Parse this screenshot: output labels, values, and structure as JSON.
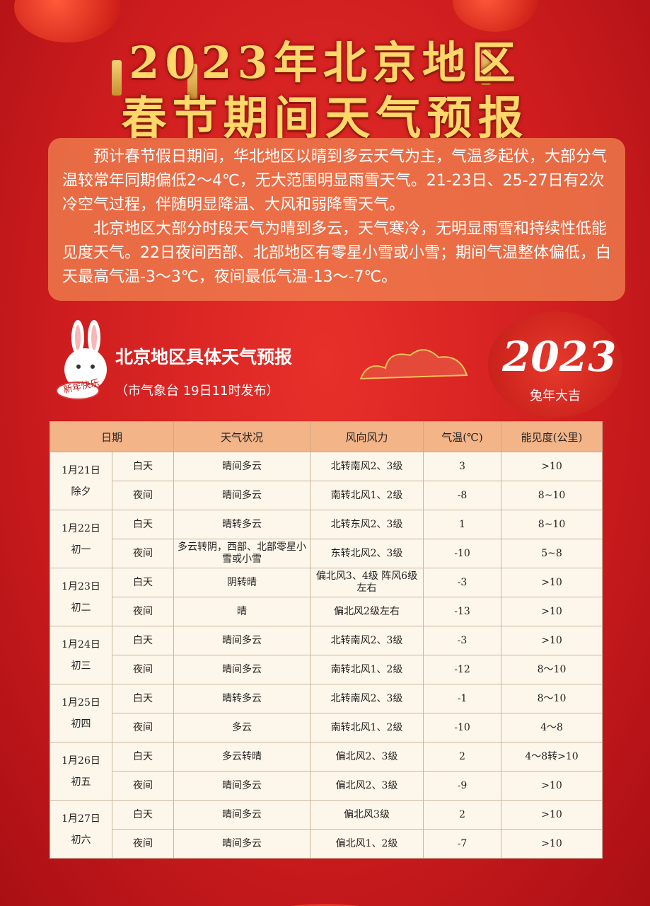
{
  "title": {
    "line1": "2023年北京地区",
    "line2": "春节期间天气预报"
  },
  "intro": {
    "para1": "预计春节假日期间，华北地区以晴到多云天气为主，气温多起伏，大部分气温较常年同期偏低2～4℃，无大范围明显雨雪天气。21-23日、25-27日有2次冷空气过程，伴随明显降温、大风和弱降雪天气。",
    "para2": "北京地区大部分时段天气为晴到多云，天气寒冷，无明显雨雪和持续性低能见度天气。22日夜间西部、北部地区有零星小雪或小雪；期间气温整体偏低，白天最高气温-3～3℃，夜间最低气温-13～-7℃。"
  },
  "section": {
    "title": "北京地区具体天气预报",
    "subtitle": "（市气象台 19日11时发布）"
  },
  "logo": {
    "year": "2023",
    "caption": "兔年大吉",
    "badge": "新年快乐"
  },
  "table": {
    "headers": [
      "日期",
      "天气状况",
      "风向风力",
      "气温(℃)",
      "能见度(公里)"
    ],
    "days": [
      {
        "date": "1月21日",
        "lunar": "除夕",
        "rows": [
          {
            "period": "白天",
            "weather": "晴间多云",
            "wind": "北转南风2、3级",
            "temp": "3",
            "vis": ">10"
          },
          {
            "period": "夜间",
            "weather": "晴间多云",
            "wind": "南转北风1、2级",
            "temp": "-8",
            "vis": "8~10"
          }
        ]
      },
      {
        "date": "1月22日",
        "lunar": "初一",
        "rows": [
          {
            "period": "白天",
            "weather": "晴转多云",
            "wind": "北转东风2、3级",
            "temp": "1",
            "vis": "8~10"
          },
          {
            "period": "夜间",
            "weather": "多云转阴，西部、北部零星小雪或小雪",
            "wind": "东转北风2、3级",
            "temp": "-10",
            "vis": "5~8"
          }
        ]
      },
      {
        "date": "1月23日",
        "lunar": "初二",
        "rows": [
          {
            "period": "白天",
            "weather": "阴转晴",
            "wind": "偏北风3、4级 阵风6级左右",
            "temp": "-3",
            "vis": ">10"
          },
          {
            "period": "夜间",
            "weather": "晴",
            "wind": "偏北风2级左右",
            "temp": "-13",
            "vis": ">10"
          }
        ]
      },
      {
        "date": "1月24日",
        "lunar": "初三",
        "rows": [
          {
            "period": "白天",
            "weather": "晴间多云",
            "wind": "北转南风2、3级",
            "temp": "-3",
            "vis": ">10"
          },
          {
            "period": "夜间",
            "weather": "晴间多云",
            "wind": "南转北风1、2级",
            "temp": "-12",
            "vis": "8～10"
          }
        ]
      },
      {
        "date": "1月25日",
        "lunar": "初四",
        "rows": [
          {
            "period": "白天",
            "weather": "晴转多云",
            "wind": "北转南风2、3级",
            "temp": "-1",
            "vis": "8～10"
          },
          {
            "period": "夜间",
            "weather": "多云",
            "wind": "南转北风1、2级",
            "temp": "-10",
            "vis": "4～8"
          }
        ]
      },
      {
        "date": "1月26日",
        "lunar": "初五",
        "rows": [
          {
            "period": "白天",
            "weather": "多云转晴",
            "wind": "偏北风2、3级",
            "temp": "2",
            "vis": "4～8转>10"
          },
          {
            "period": "夜间",
            "weather": "晴间多云",
            "wind": "偏北风2、3级",
            "temp": "-9",
            "vis": ">10"
          }
        ]
      },
      {
        "date": "1月27日",
        "lunar": "初六",
        "rows": [
          {
            "period": "白天",
            "weather": "晴间多云",
            "wind": "偏北风3级",
            "temp": "2",
            "vis": ">10"
          },
          {
            "period": "夜间",
            "weather": "晴间多云",
            "wind": "偏北风1、2级",
            "temp": "-7",
            "vis": ">10"
          }
        ]
      }
    ]
  },
  "colors": {
    "background": "#cf1d1f",
    "title": "#ffd76a",
    "header": "#f3b488",
    "table_bg": "#fdf6ea"
  }
}
